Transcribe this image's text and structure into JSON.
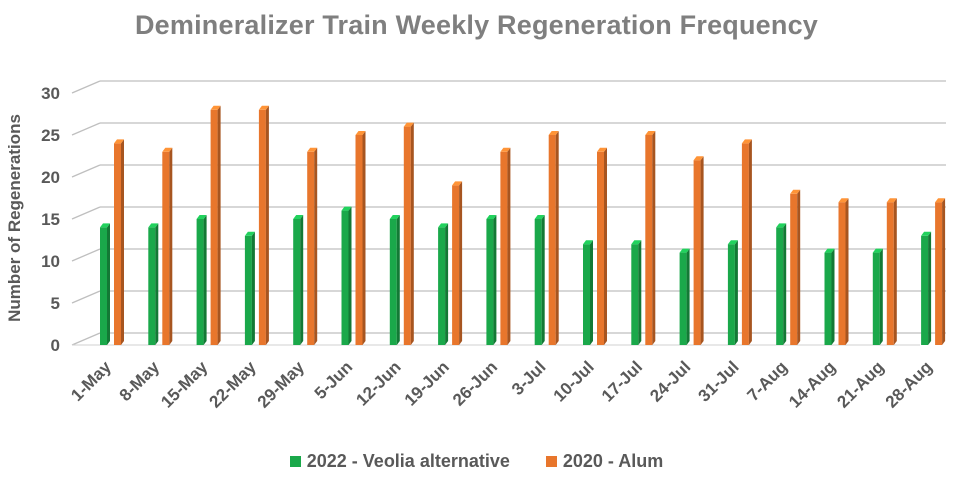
{
  "chart_data": {
    "type": "bar",
    "title": "Demineralizer Train Weekly Regeneration Frequency",
    "ylabel": "Number of Regenerations",
    "xlabel": "",
    "ylim": [
      0,
      30
    ],
    "yticks": [
      0,
      5,
      10,
      15,
      20,
      25,
      30
    ],
    "grid": true,
    "legend_position": "bottom",
    "categories": [
      "1-May",
      "8-May",
      "15-May",
      "22-May",
      "29-May",
      "5-Jun",
      "12-Jun",
      "19-Jun",
      "26-Jun",
      "3-Jul",
      "10-Jul",
      "17-Jul",
      "24-Jul",
      "31-Jul",
      "7-Aug",
      "14-Aug",
      "21-Aug",
      "28-Aug"
    ],
    "extra_green_value": 13,
    "extra_orange_value": 17,
    "series": [
      {
        "name": "2022 - Veolia alternative",
        "color": "#1aa84a",
        "values": [
          14,
          14,
          15,
          13,
          15,
          16,
          15,
          14,
          15,
          15,
          12,
          12,
          11,
          12,
          14,
          11,
          11,
          13
        ]
      },
      {
        "name": "2020 - Alum",
        "color": "#e8762c",
        "values": [
          24,
          23,
          28,
          28,
          23,
          25,
          26,
          19,
          23,
          25,
          23,
          25,
          22,
          24,
          18,
          17,
          17,
          17
        ]
      }
    ]
  }
}
